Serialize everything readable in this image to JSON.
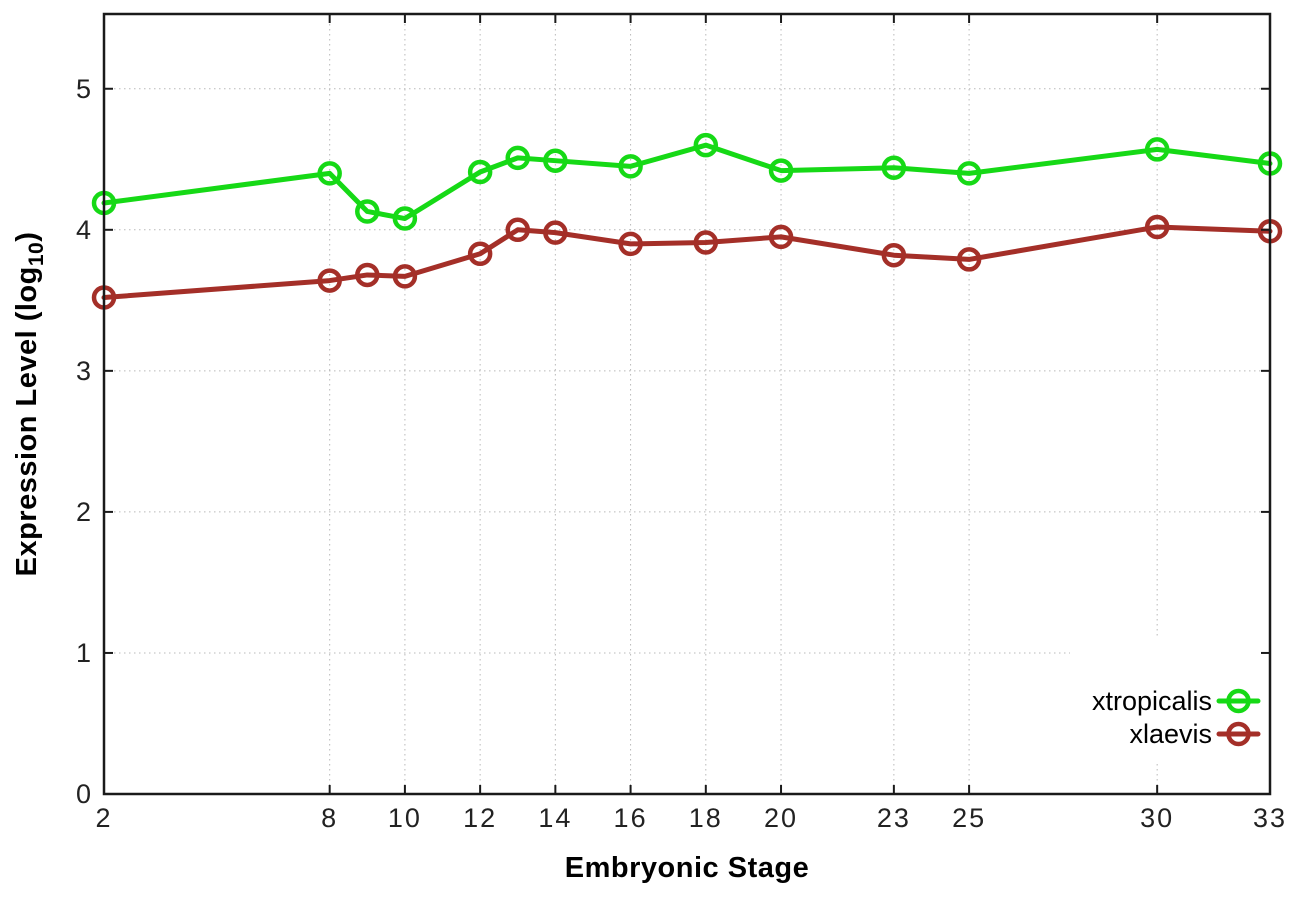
{
  "chart_data": {
    "type": "line",
    "title": "",
    "xlabel": "Embryonic Stage",
    "ylabel": "Expression Level (log10)",
    "ylabel_parts": {
      "pre": "Expression Level (log",
      "sub": "10",
      "post": ")"
    },
    "x": [
      2,
      8,
      9,
      10,
      12,
      13,
      14,
      16,
      18,
      20,
      23,
      25,
      30,
      33
    ],
    "series": [
      {
        "name": "xtropicalis",
        "color": "#16d916",
        "values": [
          4.19,
          4.4,
          4.13,
          4.08,
          4.41,
          4.51,
          4.49,
          4.45,
          4.6,
          4.42,
          4.44,
          4.4,
          4.57,
          4.47
        ]
      },
      {
        "name": "xlaevis",
        "color": "#a42f28",
        "values": [
          3.52,
          3.64,
          3.68,
          3.67,
          3.83,
          4.0,
          3.98,
          3.9,
          3.91,
          3.95,
          3.82,
          3.79,
          4.02,
          3.99
        ]
      }
    ],
    "xticks": [
      2,
      8,
      10,
      12,
      14,
      16,
      18,
      20,
      23,
      25,
      30,
      33
    ],
    "yticks": [
      0,
      1,
      2,
      3,
      4,
      5
    ],
    "xlim": [
      2,
      33
    ],
    "ylim": [
      0,
      5.53
    ],
    "grid": true,
    "legend_position": "bottom-right",
    "colors": {
      "background": "#ffffff",
      "border": "#1a1a1a",
      "grid": "#b9b9b9",
      "text": "#222222"
    }
  }
}
